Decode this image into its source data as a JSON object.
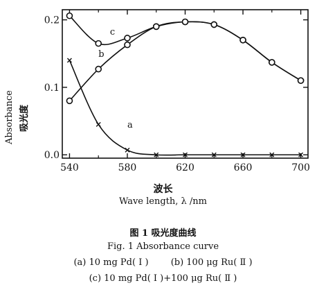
{
  "chart_data": {
    "type": "line",
    "xlabel_cn": "波长",
    "xlabel": "Wave length, λ /nm",
    "ylabel": "Absorbance",
    "ylabel_cn": "吸光度",
    "xlim": [
      535,
      705
    ],
    "ylim": [
      -0.005,
      0.215
    ],
    "x_ticks": [
      540,
      580,
      620,
      660,
      700
    ],
    "x_tick_labels": [
      "540",
      "580",
      "620",
      "660",
      "700"
    ],
    "x_minor_ticks": [
      560,
      600,
      640,
      680
    ],
    "y_ticks": [
      0.0,
      0.1,
      0.2
    ],
    "y_tick_labels": [
      "0.0",
      "0.1",
      "0.2"
    ],
    "grid": false,
    "series": [
      {
        "name": "a",
        "marker": "x",
        "x": [
          540,
          560,
          580,
          600,
          620,
          640,
          660,
          680,
          700
        ],
        "y": [
          0.14,
          0.045,
          0.007,
          0.0,
          0.0,
          0.0,
          0.0,
          0.0,
          0.0
        ]
      },
      {
        "name": "b",
        "marker": "o",
        "x": [
          540,
          560,
          580,
          600,
          620,
          640,
          660,
          680,
          700
        ],
        "y": [
          0.08,
          0.127,
          0.163,
          0.19,
          0.197,
          0.193,
          0.17,
          0.137,
          0.11
        ]
      },
      {
        "name": "c",
        "marker": "o",
        "x": [
          540,
          560,
          580,
          600,
          620,
          640,
          660,
          680,
          700
        ],
        "y": [
          0.206,
          0.165,
          0.173,
          0.19,
          0.197,
          0.193,
          0.17,
          0.137,
          0.11
        ]
      }
    ]
  },
  "caption": {
    "title": "图 1   吸光度曲线",
    "title_en": "Fig. 1 Absorbance curve",
    "line_a": "(a) 10 mg Pd( Ⅰ )",
    "line_b": "(b) 100 μg Ru( Ⅱ )",
    "line_c": "(c) 10 mg Pd( Ⅰ )+100 μg Ru( Ⅱ )"
  }
}
